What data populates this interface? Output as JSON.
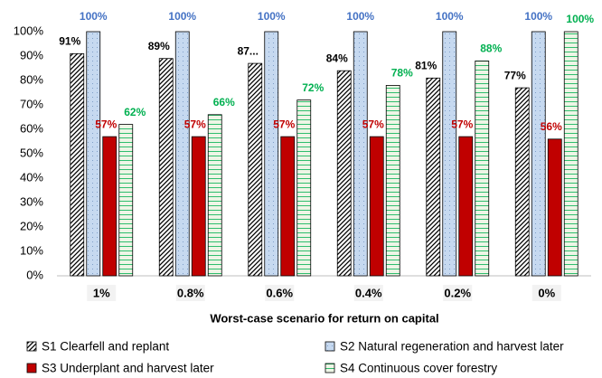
{
  "chart_data": {
    "type": "bar",
    "x_label": "Worst-case scenario for return on capital",
    "categories": [
      "1%",
      "0.8%",
      "0.6%",
      "0.4%",
      "0.2%",
      "0%"
    ],
    "series": [
      {
        "name": "S1 Clearfell and replant",
        "color": "#000000",
        "pattern": "hatch",
        "label_color": "#000000",
        "values": [
          91,
          89,
          87,
          84,
          81,
          77
        ],
        "value_labels": [
          "91%",
          "89%",
          "87...",
          "84%",
          "81%",
          "77%"
        ]
      },
      {
        "name": "S2 Natural regeneration and harvest later",
        "color": "#c6d9f0",
        "pattern": "dots",
        "label_color": "#4472c4",
        "values": [
          100,
          100,
          100,
          100,
          100,
          100
        ],
        "value_labels": [
          "100%",
          "100%",
          "100%",
          "100%",
          "100%",
          "100%"
        ]
      },
      {
        "name": "S3 Underplant and harvest later",
        "color": "#c00000",
        "pattern": "solid",
        "label_color": "#c00000",
        "values": [
          57,
          57,
          57,
          57,
          57,
          56
        ],
        "value_labels": [
          "57%",
          "57%",
          "57%",
          "57%",
          "57%",
          "56%"
        ]
      },
      {
        "name": "S4 Continuous cover forestry",
        "color": "#00b050",
        "pattern": "hlines",
        "label_color": "#00b050",
        "values": [
          62,
          66,
          72,
          78,
          88,
          100
        ],
        "value_labels": [
          "62%",
          "66%",
          "72%",
          "78%",
          "88%",
          "100%"
        ]
      }
    ],
    "ylim": [
      0,
      100
    ],
    "yticks": [
      {
        "value": 0,
        "label": "0%"
      },
      {
        "value": 10,
        "label": "10%"
      },
      {
        "value": 20,
        "label": "20%"
      },
      {
        "value": 30,
        "label": "30%"
      },
      {
        "value": 40,
        "label": "40%"
      },
      {
        "value": 50,
        "label": "50%"
      },
      {
        "value": 60,
        "label": "60%"
      },
      {
        "value": 70,
        "label": "70%"
      },
      {
        "value": 80,
        "label": "80%"
      },
      {
        "value": 90,
        "label": "90%"
      },
      {
        "value": 100,
        "label": "100%"
      }
    ],
    "legend": "bottom"
  }
}
